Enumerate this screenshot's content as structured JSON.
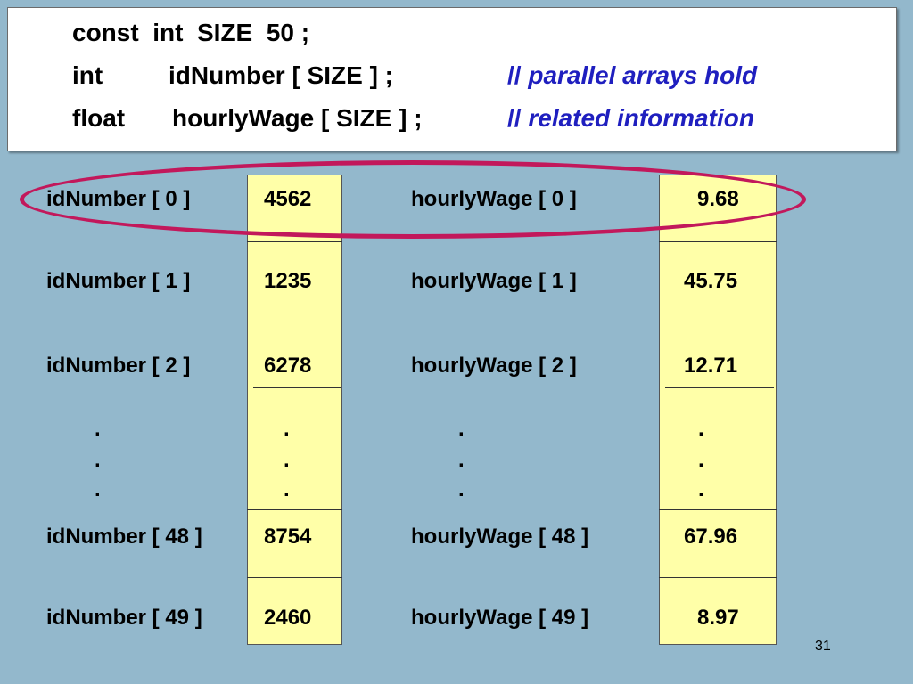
{
  "code": {
    "line1": "const  int  SIZE  50 ;",
    "line2": "int",
    "line2_decl": "idNumber [ SIZE ] ;",
    "line2_comment_slashes": "//",
    "line2_comment": "parallel arrays hold",
    "line3": "float",
    "line3_decl": "hourlyWage [ SIZE ] ;",
    "line3_comment_slashes": "//",
    "line3_comment": "related information"
  },
  "rows": [
    {
      "id_label": "idNumber [ 0 ]",
      "id_value": "4562",
      "wage_label": "hourlyWage [ 0 ]",
      "wage_value": "9.68"
    },
    {
      "id_label": "idNumber [ 1 ]",
      "id_value": "1235",
      "wage_label": "hourlyWage [ 1 ]",
      "wage_value": "45.75"
    },
    {
      "id_label": "idNumber [ 2 ]",
      "id_value": "6278",
      "wage_label": "hourlyWage [ 2 ]",
      "wage_value": "12.71"
    },
    {
      "id_label": "idNumber [ 48 ]",
      "id_value": "8754",
      "wage_label": "hourlyWage [ 48 ]",
      "wage_value": "67.96"
    },
    {
      "id_label": "idNumber [ 49 ]",
      "id_value": "2460",
      "wage_label": "hourlyWage [ 49 ]",
      "wage_value": "8.97"
    }
  ],
  "ellipsis_dot": ".",
  "page_number": "31",
  "colors": {
    "background": "#93b8cc",
    "cell_fill": "#ffffa8",
    "comment": "#1f1fbf",
    "highlight": "#c2185b"
  }
}
